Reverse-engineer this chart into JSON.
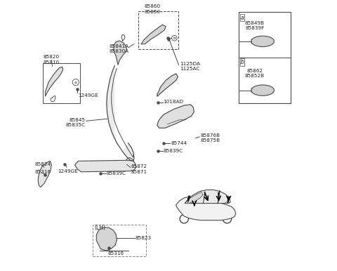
{
  "bg_color": "#ffffff",
  "line_color": "#4a4a4a",
  "text_color": "#222222",
  "fs": 5.2,
  "fs_sm": 4.8,
  "labels": {
    "85841A_85830A": [
      0.395,
      0.81,
      "85841A\n85830A",
      "center",
      "bottom"
    ],
    "85845_85835C": [
      0.27,
      0.54,
      "85845\n85835C",
      "right",
      "center"
    ],
    "85820_85810": [
      0.078,
      0.66,
      "85820\n85810",
      "left",
      "center"
    ],
    "1249GE_up": [
      0.188,
      0.568,
      "1249GE",
      "left",
      "center"
    ],
    "1249GE_dn": [
      0.088,
      0.355,
      "1249GE",
      "left",
      "center"
    ],
    "85824": [
      0.015,
      0.382,
      "85824",
      "left",
      "center"
    ],
    "85316_left": [
      0.015,
      0.355,
      "85316",
      "left",
      "center"
    ],
    "85872_85871": [
      0.358,
      0.358,
      "85872\n85871",
      "left",
      "center"
    ],
    "85839C_dn": [
      0.248,
      0.33,
      "• 85839C",
      "left",
      "center"
    ],
    "85860_85850": [
      0.475,
      0.95,
      "85860\n85850",
      "center",
      "bottom"
    ],
    "1125DA_1125AC": [
      0.53,
      0.742,
      "1125DA\n1125AC",
      "left",
      "center"
    ],
    "b_label": [
      0.514,
      0.77,
      "b",
      "center",
      "center"
    ],
    "1018AD": [
      0.47,
      0.61,
      "1018AD",
      "left",
      "center"
    ],
    "85744": [
      0.52,
      0.468,
      "85744",
      "left",
      "center"
    ],
    "85839C_mid": [
      0.495,
      0.432,
      "• 85839C",
      "left",
      "center"
    ],
    "85876B_85875B": [
      0.618,
      0.49,
      "85876B\n85875B",
      "left",
      "center"
    ],
    "85849B_85839F": [
      0.842,
      0.85,
      "85849B\n85839F",
      "center",
      "center"
    ],
    "85862_85852B": [
      0.842,
      0.665,
      "85862\n85852B",
      "center",
      "center"
    ],
    "lh_85823": [
      0.38,
      0.118,
      "85823",
      "left",
      "center"
    ],
    "lh_85316": [
      0.322,
      0.078,
      "85316",
      "left",
      "center"
    ]
  }
}
